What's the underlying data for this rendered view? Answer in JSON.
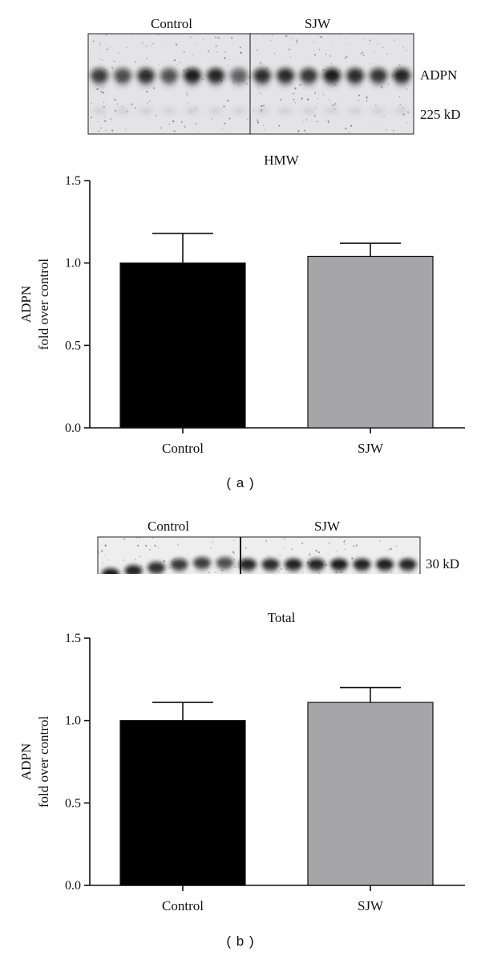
{
  "panels": [
    {
      "id": "a",
      "caption": "a",
      "blot": {
        "group_labels": [
          "Control",
          "SJW"
        ],
        "band_label": "ADPN",
        "size_label": "225 kD",
        "lanes_per_group": [
          7,
          7
        ]
      },
      "chart_data": {
        "type": "bar",
        "title": "HMW",
        "categories": [
          "Control",
          "SJW"
        ],
        "values": [
          1.0,
          1.04
        ],
        "errors": [
          0.18,
          0.08
        ],
        "ylabel_lines": [
          "ADPN",
          "fold over control"
        ],
        "ylim": [
          0,
          1.5
        ],
        "yticks": [
          "0.0",
          "0.5",
          "1.0",
          "1.5"
        ],
        "bar_colors": [
          "#000000",
          "#a6a6a8"
        ],
        "grid": false
      }
    },
    {
      "id": "b",
      "caption": "b",
      "blot": {
        "group_labels": [
          "Control",
          "SJW"
        ],
        "band_label": "",
        "size_label": "30 kD",
        "lanes_per_group": [
          6,
          8
        ]
      },
      "chart_data": {
        "type": "bar",
        "title": "Total",
        "categories": [
          "Control",
          "SJW"
        ],
        "values": [
          1.0,
          1.11
        ],
        "errors": [
          0.11,
          0.09
        ],
        "ylabel_lines": [
          "ADPN",
          "fold over control"
        ],
        "ylim": [
          0,
          1.5
        ],
        "yticks": [
          "0.0",
          "0.5",
          "1.0",
          "1.5"
        ],
        "bar_colors": [
          "#000000",
          "#a6a6a8"
        ],
        "grid": false
      }
    }
  ]
}
